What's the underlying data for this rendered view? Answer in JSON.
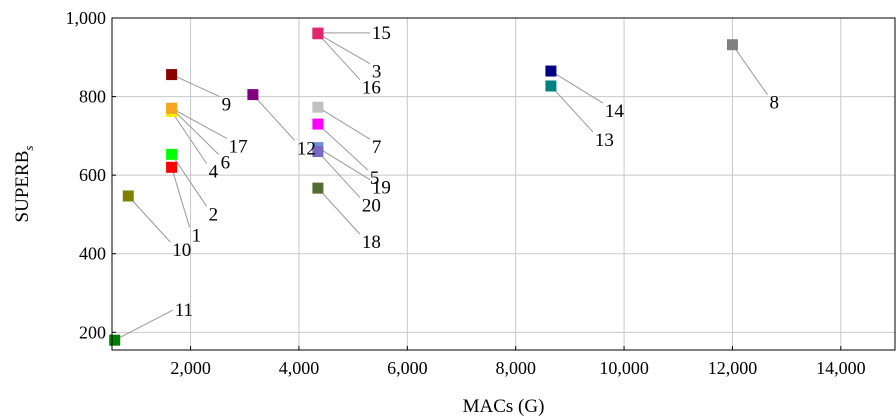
{
  "chart_data": {
    "type": "scatter",
    "xlabel": "MACs (G)",
    "ylabel_main": "SUPERB",
    "ylabel_sub": "s",
    "xlim": [
      550,
      15000
    ],
    "ylim": [
      155,
      1000
    ],
    "x_ticks": [
      {
        "value": 2000,
        "label": "2,000"
      },
      {
        "value": 4000,
        "label": "4,000"
      },
      {
        "value": 6000,
        "label": "6,000"
      },
      {
        "value": 8000,
        "label": "8,000"
      },
      {
        "value": 10000,
        "label": "10,000"
      },
      {
        "value": 12000,
        "label": "12,000"
      },
      {
        "value": 14000,
        "label": "14,000"
      }
    ],
    "y_ticks": [
      {
        "value": 200,
        "label": "200"
      },
      {
        "value": 400,
        "label": "400"
      },
      {
        "value": 600,
        "label": "600"
      },
      {
        "value": 800,
        "label": "800"
      },
      {
        "value": 1000,
        "label": "1,000"
      }
    ],
    "grid": true,
    "points": [
      {
        "label": "1",
        "x": 1650,
        "y": 620,
        "color": "#ff0000",
        "ldx": 18,
        "ldy": 60
      },
      {
        "label": "2",
        "x": 1650,
        "y": 653,
        "color": "#00ff00",
        "ldx": 35,
        "ldy": 52
      },
      {
        "label": "3",
        "x": 4350,
        "y": 960,
        "color": "#f2c94c",
        "ldx": 52,
        "ldy": 30
      },
      {
        "label": "4",
        "x": 1650,
        "y": 762,
        "color": "#fff000",
        "ldx": 35,
        "ldy": 52
      },
      {
        "label": "5",
        "x": 4350,
        "y": 730,
        "color": "#ff00ff",
        "ldx": 50,
        "ldy": 46
      },
      {
        "label": "6",
        "x": 1650,
        "y": 770,
        "color": "#f5a623",
        "ldx": 47,
        "ldy": 46
      },
      {
        "label": "7",
        "x": 4350,
        "y": 773,
        "color": "#c0c0c0",
        "ldx": 52,
        "ldy": 32
      },
      {
        "label": "8",
        "x": 12000,
        "y": 932,
        "color": "#808080",
        "ldx": 35,
        "ldy": 50
      },
      {
        "label": "9",
        "x": 1650,
        "y": 856,
        "color": "#8b0000",
        "ldx": 48,
        "ldy": 22
      },
      {
        "label": "10",
        "x": 850,
        "y": 547,
        "color": "#808000",
        "ldx": 42,
        "ldy": 46
      },
      {
        "label": "11",
        "x": 600,
        "y": 180,
        "color": "#008000",
        "ldx": 58,
        "ldy": -30
      },
      {
        "label": "12",
        "x": 3150,
        "y": 805,
        "color": "#800080",
        "ldx": 42,
        "ldy": 46
      },
      {
        "label": "13",
        "x": 8650,
        "y": 827,
        "color": "#008080",
        "ldx": 42,
        "ldy": 46
      },
      {
        "label": "14",
        "x": 8650,
        "y": 865,
        "color": "#000080",
        "ldx": 52,
        "ldy": 32
      },
      {
        "label": "15",
        "x": 4350,
        "y": 962,
        "color": "#ff4fa8",
        "ldx": 52,
        "ldy": 0
      },
      {
        "label": "16",
        "x": 4350,
        "y": 960,
        "color": "#e0246e",
        "ldx": 42,
        "ldy": 46
      },
      {
        "label": "17",
        "x": 1650,
        "y": 770,
        "color": "#f5a623",
        "ldx": 55,
        "ldy": 30
      },
      {
        "label": "18",
        "x": 4350,
        "y": 567,
        "color": "#556b2f",
        "ldx": 42,
        "ldy": 46
      },
      {
        "label": "19",
        "x": 4350,
        "y": 670,
        "color": "#6b8ed6",
        "ldx": 52,
        "ldy": 32
      },
      {
        "label": "20",
        "x": 4350,
        "y": 660,
        "color": "#7b68c4",
        "ldx": 42,
        "ldy": 46
      }
    ]
  }
}
